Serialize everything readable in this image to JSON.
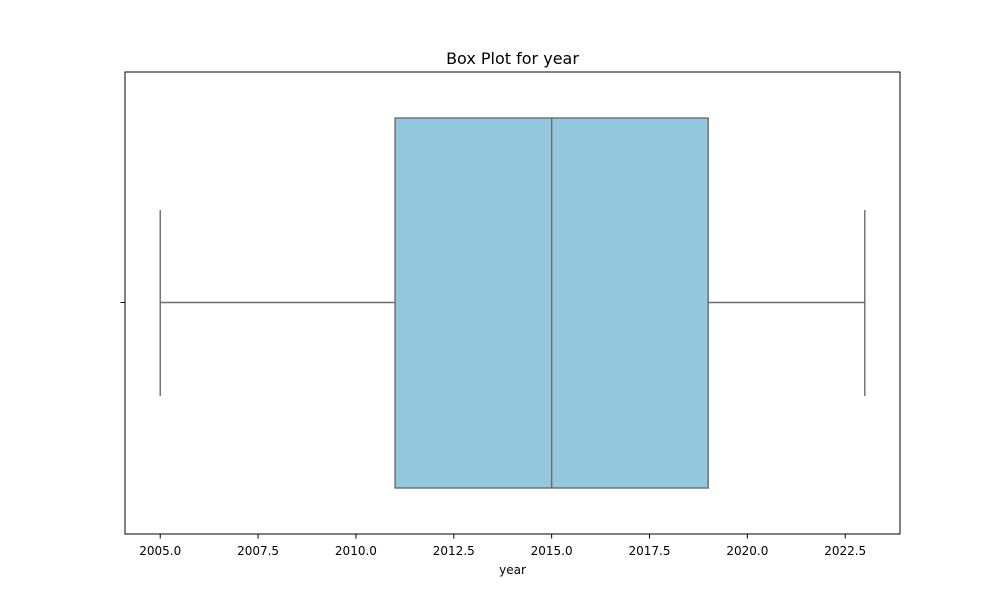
{
  "chart_data": {
    "type": "box",
    "title": "Box Plot for year",
    "xlabel": "year",
    "ylabel": "",
    "orientation": "horizontal",
    "xlim": [
      2004.1,
      2023.9
    ],
    "xticks": [
      2005.0,
      2007.5,
      2010.0,
      2012.5,
      2015.0,
      2017.5,
      2020.0,
      2022.5
    ],
    "xtick_labels": [
      "2005.0",
      "2007.5",
      "2010.0",
      "2012.5",
      "2015.0",
      "2017.5",
      "2020.0",
      "2022.5"
    ],
    "grid": false,
    "legend": "none",
    "box": {
      "whisker_low": 2005.0,
      "q1": 2011.0,
      "median": 2015.0,
      "q3": 2019.0,
      "whisker_high": 2023.0
    },
    "colors": {
      "box_fill": "#95c8de",
      "line": "#6b6b6b",
      "axes": "#000000"
    }
  }
}
